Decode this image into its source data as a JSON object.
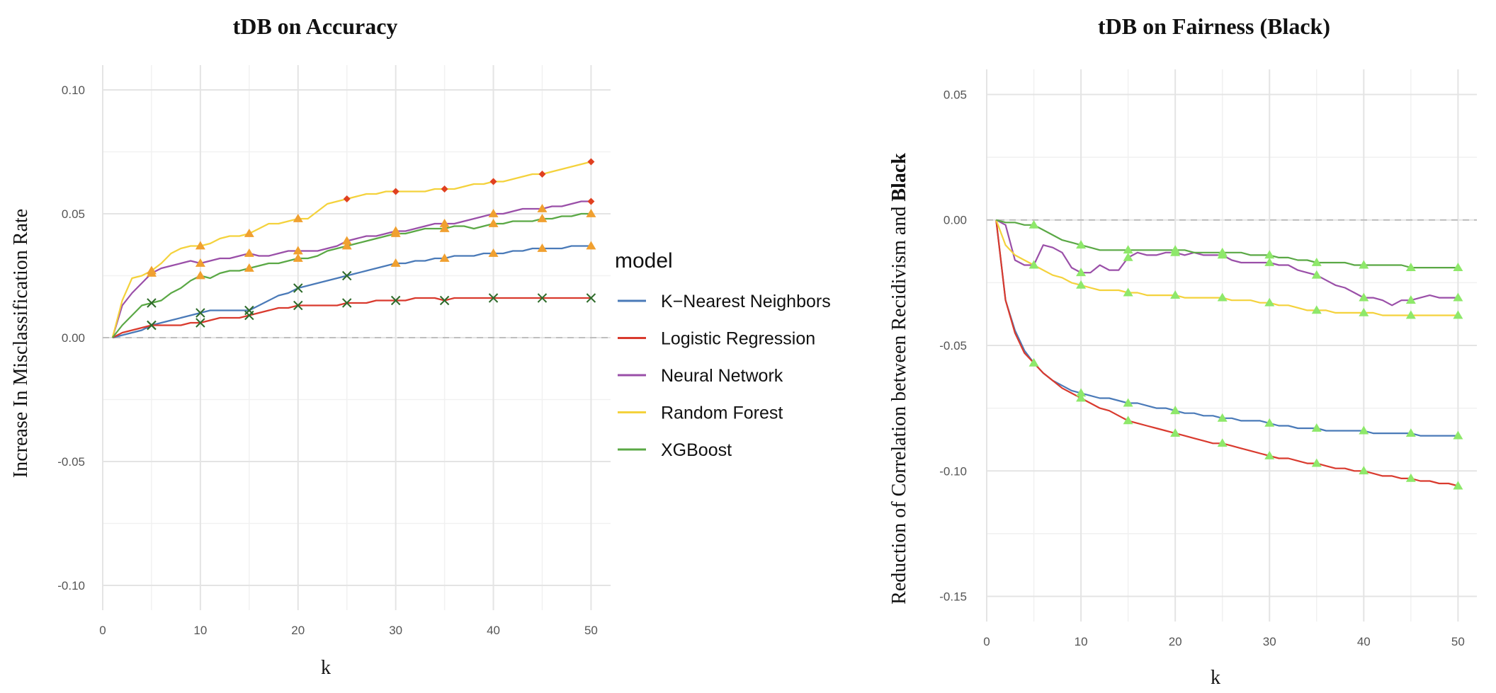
{
  "chart_data": [
    {
      "type": "line",
      "title": "tDB on Accuracy",
      "xlabel": "k",
      "ylabel": "Increase In Misclassification Rate",
      "xlim": [
        0,
        52
      ],
      "ylim": [
        -0.11,
        0.11
      ],
      "xticks": [
        "0",
        "10",
        "20",
        "30",
        "40",
        "50"
      ],
      "yticks": [
        "0.10",
        "0.05",
        "0.00",
        "-0.05",
        "-0.10"
      ],
      "grid": true,
      "reference_line": 0,
      "x": [
        1,
        2,
        3,
        4,
        5,
        6,
        7,
        8,
        9,
        10,
        11,
        12,
        13,
        14,
        15,
        16,
        17,
        18,
        19,
        20,
        21,
        22,
        23,
        24,
        25,
        26,
        27,
        28,
        29,
        30,
        31,
        32,
        33,
        34,
        35,
        36,
        37,
        38,
        39,
        40,
        41,
        42,
        43,
        44,
        45,
        46,
        47,
        48,
        49,
        50
      ],
      "series": [
        {
          "name": "K−Nearest Neighbors",
          "color": "#4a7ab8",
          "values": [
            0.0,
            0.001,
            0.002,
            0.003,
            0.005,
            0.006,
            0.007,
            0.008,
            0.009,
            0.01,
            0.011,
            0.011,
            0.011,
            0.011,
            0.011,
            0.013,
            0.015,
            0.017,
            0.018,
            0.02,
            0.021,
            0.022,
            0.023,
            0.024,
            0.025,
            0.026,
            0.027,
            0.028,
            0.029,
            0.03,
            0.03,
            0.031,
            0.031,
            0.032,
            0.032,
            0.033,
            0.033,
            0.033,
            0.034,
            0.034,
            0.034,
            0.035,
            0.035,
            0.036,
            0.036,
            0.036,
            0.036,
            0.037,
            0.037,
            0.037
          ]
        },
        {
          "name": "Logistic Regression",
          "color": "#d93a2e",
          "values": [
            0.0,
            0.002,
            0.003,
            0.004,
            0.005,
            0.005,
            0.005,
            0.005,
            0.006,
            0.006,
            0.007,
            0.008,
            0.008,
            0.008,
            0.009,
            0.01,
            0.011,
            0.012,
            0.012,
            0.013,
            0.013,
            0.013,
            0.013,
            0.013,
            0.014,
            0.014,
            0.014,
            0.015,
            0.015,
            0.015,
            0.015,
            0.016,
            0.016,
            0.016,
            0.015,
            0.016,
            0.016,
            0.016,
            0.016,
            0.016,
            0.016,
            0.016,
            0.016,
            0.016,
            0.016,
            0.016,
            0.016,
            0.016,
            0.016,
            0.016
          ]
        },
        {
          "name": "Neural Network",
          "color": "#9a4fa8",
          "values": [
            0.0,
            0.013,
            0.018,
            0.022,
            0.026,
            0.028,
            0.029,
            0.03,
            0.031,
            0.03,
            0.031,
            0.032,
            0.032,
            0.033,
            0.034,
            0.033,
            0.033,
            0.034,
            0.035,
            0.035,
            0.035,
            0.035,
            0.036,
            0.037,
            0.039,
            0.04,
            0.041,
            0.041,
            0.042,
            0.043,
            0.043,
            0.044,
            0.045,
            0.046,
            0.046,
            0.046,
            0.047,
            0.048,
            0.049,
            0.05,
            0.05,
            0.051,
            0.052,
            0.052,
            0.052,
            0.053,
            0.053,
            0.054,
            0.055,
            0.055
          ]
        },
        {
          "name": "Random Forest",
          "color": "#f4d23c",
          "values": [
            0.0,
            0.015,
            0.024,
            0.025,
            0.027,
            0.03,
            0.034,
            0.036,
            0.037,
            0.037,
            0.038,
            0.04,
            0.041,
            0.041,
            0.042,
            0.044,
            0.046,
            0.046,
            0.047,
            0.048,
            0.048,
            0.051,
            0.054,
            0.055,
            0.056,
            0.057,
            0.058,
            0.058,
            0.059,
            0.059,
            0.059,
            0.059,
            0.059,
            0.06,
            0.06,
            0.06,
            0.061,
            0.062,
            0.062,
            0.063,
            0.063,
            0.064,
            0.065,
            0.066,
            0.066,
            0.067,
            0.068,
            0.069,
            0.07,
            0.071
          ]
        },
        {
          "name": "XGBoost",
          "color": "#5aa845",
          "values": [
            0.0,
            0.005,
            0.009,
            0.013,
            0.014,
            0.015,
            0.018,
            0.02,
            0.023,
            0.025,
            0.024,
            0.026,
            0.027,
            0.027,
            0.028,
            0.029,
            0.03,
            0.03,
            0.031,
            0.032,
            0.032,
            0.033,
            0.035,
            0.036,
            0.037,
            0.038,
            0.039,
            0.04,
            0.041,
            0.042,
            0.042,
            0.043,
            0.044,
            0.044,
            0.044,
            0.045,
            0.045,
            0.044,
            0.045,
            0.046,
            0.046,
            0.047,
            0.047,
            0.047,
            0.048,
            0.048,
            0.049,
            0.049,
            0.05,
            0.05
          ]
        }
      ],
      "markers": [
        {
          "series": 0,
          "x": [
            5,
            10,
            15,
            20,
            25,
            30,
            35,
            40,
            45,
            50
          ],
          "shapes": [
            "x",
            "x",
            "x",
            "x",
            "x",
            "tri",
            "tri",
            "tri",
            "tri",
            "tri"
          ]
        },
        {
          "series": 1,
          "x": [
            5,
            10,
            15,
            20,
            25,
            30,
            35,
            40,
            45,
            50
          ],
          "shapes": [
            "x",
            "x",
            "x",
            "x",
            "x",
            "x",
            "x",
            "x",
            "x",
            "x"
          ]
        },
        {
          "series": 2,
          "x": [
            5,
            10,
            15,
            20,
            25,
            30,
            35,
            40,
            45,
            50
          ],
          "shapes": [
            "tri",
            "tri",
            "tri",
            "tri",
            "tri",
            "tri",
            "tri",
            "tri",
            "tri",
            "diamond"
          ]
        },
        {
          "series": 3,
          "x": [
            5,
            10,
            15,
            20,
            25,
            30,
            35,
            40,
            45,
            50
          ],
          "shapes": [
            "tri",
            "tri",
            "tri",
            "tri",
            "diamond",
            "diamond",
            "diamond",
            "diamond",
            "diamond",
            "diamond"
          ]
        },
        {
          "series": 4,
          "x": [
            5,
            10,
            15,
            20,
            25,
            30,
            35,
            40,
            45,
            50
          ],
          "shapes": [
            "x",
            "tri",
            "tri",
            "tri",
            "tri",
            "tri",
            "tri",
            "tri",
            "tri",
            "tri"
          ]
        }
      ],
      "marker_colors": {
        "tri": "#f0a030",
        "diamond": "#e04020",
        "x": "#2e6b2a"
      }
    },
    {
      "type": "line",
      "title": "tDB on Fairness (Black)",
      "xlabel": "k",
      "ylabel": "Reduction of Correlation between Recidivism and ",
      "ylabel_bold": "Black",
      "xlim": [
        0,
        52
      ],
      "ylim": [
        -0.16,
        0.06
      ],
      "xticks": [
        "0",
        "10",
        "20",
        "30",
        "40",
        "50"
      ],
      "yticks": [
        "0.05",
        "0.00",
        "-0.05",
        "-0.10",
        "-0.15"
      ],
      "grid": true,
      "reference_line": 0,
      "x": [
        1,
        2,
        3,
        4,
        5,
        6,
        7,
        8,
        9,
        10,
        11,
        12,
        13,
        14,
        15,
        16,
        17,
        18,
        19,
        20,
        21,
        22,
        23,
        24,
        25,
        26,
        27,
        28,
        29,
        30,
        31,
        32,
        33,
        34,
        35,
        36,
        37,
        38,
        39,
        40,
        41,
        42,
        43,
        44,
        45,
        46,
        47,
        48,
        49,
        50
      ],
      "series": [
        {
          "name": "K−Nearest Neighbors",
          "color": "#4a7ab8",
          "values": [
            0.0,
            -0.032,
            -0.044,
            -0.052,
            -0.057,
            -0.061,
            -0.064,
            -0.066,
            -0.068,
            -0.069,
            -0.07,
            -0.071,
            -0.071,
            -0.072,
            -0.073,
            -0.073,
            -0.074,
            -0.075,
            -0.075,
            -0.076,
            -0.077,
            -0.077,
            -0.078,
            -0.078,
            -0.079,
            -0.079,
            -0.08,
            -0.08,
            -0.08,
            -0.081,
            -0.082,
            -0.082,
            -0.083,
            -0.083,
            -0.083,
            -0.084,
            -0.084,
            -0.084,
            -0.084,
            -0.084,
            -0.085,
            -0.085,
            -0.085,
            -0.085,
            -0.085,
            -0.086,
            -0.086,
            -0.086,
            -0.086,
            -0.086
          ]
        },
        {
          "name": "Logistic Regression",
          "color": "#d93a2e",
          "values": [
            0.0,
            -0.032,
            -0.045,
            -0.053,
            -0.057,
            -0.061,
            -0.064,
            -0.067,
            -0.069,
            -0.071,
            -0.073,
            -0.075,
            -0.076,
            -0.078,
            -0.08,
            -0.081,
            -0.082,
            -0.083,
            -0.084,
            -0.085,
            -0.086,
            -0.087,
            -0.088,
            -0.089,
            -0.089,
            -0.09,
            -0.091,
            -0.092,
            -0.093,
            -0.094,
            -0.095,
            -0.095,
            -0.096,
            -0.097,
            -0.097,
            -0.098,
            -0.099,
            -0.099,
            -0.1,
            -0.1,
            -0.101,
            -0.102,
            -0.102,
            -0.103,
            -0.103,
            -0.104,
            -0.104,
            -0.105,
            -0.105,
            -0.106
          ]
        },
        {
          "name": "Neural Network",
          "color": "#9a4fa8",
          "values": [
            0.0,
            -0.002,
            -0.016,
            -0.018,
            -0.018,
            -0.01,
            -0.011,
            -0.013,
            -0.019,
            -0.021,
            -0.021,
            -0.018,
            -0.02,
            -0.02,
            -0.015,
            -0.013,
            -0.014,
            -0.014,
            -0.013,
            -0.013,
            -0.014,
            -0.013,
            -0.014,
            -0.014,
            -0.014,
            -0.016,
            -0.017,
            -0.017,
            -0.017,
            -0.017,
            -0.018,
            -0.018,
            -0.02,
            -0.021,
            -0.022,
            -0.024,
            -0.026,
            -0.027,
            -0.029,
            -0.031,
            -0.031,
            -0.032,
            -0.034,
            -0.032,
            -0.032,
            -0.031,
            -0.03,
            -0.031,
            -0.031,
            -0.031
          ]
        },
        {
          "name": "Random Forest",
          "color": "#f4d23c",
          "values": [
            0.0,
            -0.01,
            -0.014,
            -0.016,
            -0.018,
            -0.02,
            -0.022,
            -0.023,
            -0.025,
            -0.026,
            -0.027,
            -0.028,
            -0.028,
            -0.028,
            -0.029,
            -0.029,
            -0.03,
            -0.03,
            -0.03,
            -0.03,
            -0.031,
            -0.031,
            -0.031,
            -0.031,
            -0.031,
            -0.032,
            -0.032,
            -0.032,
            -0.033,
            -0.033,
            -0.034,
            -0.034,
            -0.035,
            -0.036,
            -0.036,
            -0.036,
            -0.037,
            -0.037,
            -0.037,
            -0.037,
            -0.037,
            -0.038,
            -0.038,
            -0.038,
            -0.038,
            -0.038,
            -0.038,
            -0.038,
            -0.038,
            -0.038
          ]
        },
        {
          "name": "XGBoost",
          "color": "#5aa845",
          "values": [
            0.0,
            -0.001,
            -0.001,
            -0.002,
            -0.002,
            -0.004,
            -0.006,
            -0.008,
            -0.009,
            -0.01,
            -0.011,
            -0.012,
            -0.012,
            -0.012,
            -0.012,
            -0.012,
            -0.012,
            -0.012,
            -0.012,
            -0.012,
            -0.012,
            -0.013,
            -0.013,
            -0.013,
            -0.013,
            -0.013,
            -0.013,
            -0.014,
            -0.014,
            -0.014,
            -0.015,
            -0.015,
            -0.016,
            -0.016,
            -0.017,
            -0.017,
            -0.017,
            -0.017,
            -0.018,
            -0.018,
            -0.018,
            -0.018,
            -0.018,
            -0.018,
            -0.019,
            -0.019,
            -0.019,
            -0.019,
            -0.019,
            -0.019
          ]
        }
      ],
      "markers": [
        {
          "series": 0,
          "x": [
            5,
            10,
            15,
            20,
            25,
            30,
            35,
            40,
            45,
            50
          ],
          "shapes": [
            "tri",
            "tri",
            "tri",
            "tri",
            "tri",
            "tri",
            "tri",
            "tri",
            "tri",
            "tri"
          ]
        },
        {
          "series": 1,
          "x": [
            10,
            15,
            20,
            25,
            30,
            35,
            40,
            45,
            50
          ],
          "shapes": [
            "tri",
            "tri",
            "tri",
            "tri",
            "tri",
            "tri",
            "tri",
            "tri",
            "tri"
          ]
        },
        {
          "series": 2,
          "x": [
            10,
            15,
            20,
            25,
            30,
            35,
            40,
            45,
            50
          ],
          "shapes": [
            "tri",
            "tri",
            "tri",
            "tri",
            "tri",
            "tri",
            "tri",
            "tri",
            "tri"
          ]
        },
        {
          "series": 3,
          "x": [
            5,
            10,
            15,
            20,
            25,
            30,
            35,
            40,
            45,
            50
          ],
          "shapes": [
            "tri",
            "tri",
            "tri",
            "tri",
            "tri",
            "tri",
            "tri",
            "tri",
            "tri",
            "tri"
          ]
        },
        {
          "series": 4,
          "x": [
            5,
            10,
            15,
            20,
            25,
            30,
            35,
            40,
            45,
            50
          ],
          "shapes": [
            "tri",
            "tri",
            "tri",
            "tri",
            "tri",
            "tri",
            "tri",
            "tri",
            "tri",
            "tri"
          ]
        }
      ],
      "marker_colors": {
        "tri": "#8ee86a"
      }
    }
  ],
  "legend": {
    "title": "model",
    "entries": [
      {
        "label": "K−Nearest Neighbors",
        "color": "#4a7ab8"
      },
      {
        "label": "Logistic Regression",
        "color": "#d93a2e"
      },
      {
        "label": "Neural Network",
        "color": "#9a4fa8"
      },
      {
        "label": "Random Forest",
        "color": "#f4d23c"
      },
      {
        "label": "XGBoost",
        "color": "#5aa845"
      }
    ]
  }
}
